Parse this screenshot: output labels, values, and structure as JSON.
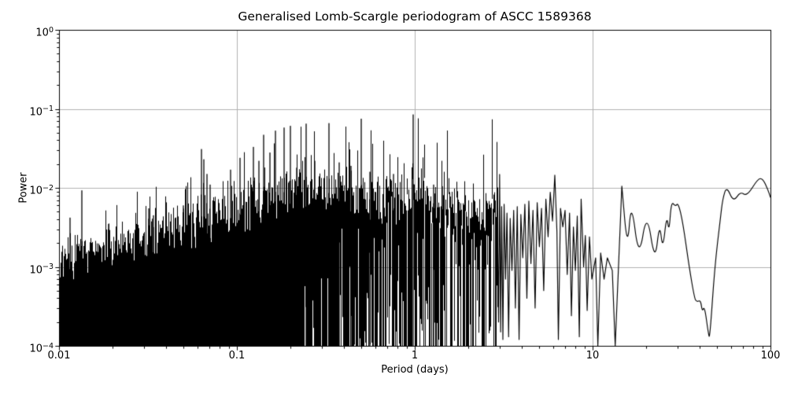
{
  "chart_data": {
    "type": "line",
    "title": "Generalised Lomb-Scargle periodogram of ASCC 1589368",
    "xlabel": "Period (days)",
    "ylabel": "Power",
    "xscale": "log",
    "yscale": "log",
    "xlim": [
      0.01,
      100
    ],
    "ylim": [
      0.0001,
      1
    ],
    "grid": true,
    "legend": "none",
    "line_color": "#000000",
    "grid_color": "#b0b0b0",
    "background_color": "#ffffff",
    "x_tick_values": [
      0.01,
      0.1,
      1,
      10,
      100
    ],
    "x_tick_labels": [
      "0.01",
      "0.1",
      "1",
      "10",
      "100"
    ],
    "y_tick_exponents": [
      0,
      -1,
      -2,
      -3,
      -4
    ],
    "noise_envelope": {
      "comment": "typical top of the dense unresolved periodogram noise, log10(period) vs log10(power); mass is solid black down to 1e-4 for log10(period) < -0.62, progressively gappier above",
      "log10_period": [
        -2.0,
        -1.9,
        -1.8,
        -1.7,
        -1.6,
        -1.5,
        -1.4,
        -1.3,
        -1.2,
        -1.1,
        -1.0,
        -0.9,
        -0.8,
        -0.7,
        -0.6,
        -0.5,
        -0.4,
        -0.3,
        -0.2,
        -0.1,
        0.0,
        0.1,
        0.2,
        0.3,
        0.4,
        0.465
      ],
      "log10_power_top": [
        -2.86,
        -2.82,
        -2.76,
        -2.7,
        -2.62,
        -2.56,
        -2.5,
        -2.42,
        -2.36,
        -2.32,
        -2.3,
        -2.22,
        -2.12,
        -2.05,
        -2.03,
        -2.02,
        -2.05,
        -2.06,
        -2.08,
        -2.06,
        -2.03,
        -2.12,
        -2.22,
        -2.3,
        -2.28,
        -2.2
      ],
      "solid_to_bottom_below_log10_period": -0.62
    },
    "major_peaks": {
      "period_days": [
        0.0115,
        0.0135,
        0.019,
        0.032,
        0.034,
        0.05,
        0.063,
        0.0655,
        0.068,
        0.071,
        0.092,
        0.104,
        0.124,
        0.133,
        0.142,
        0.153,
        0.165,
        0.184,
        0.2,
        0.218,
        0.246,
        0.275,
        0.33,
        0.375,
        0.44,
        0.5,
        0.56,
        0.76,
        0.98,
        1.28,
        1.43
      ],
      "power": [
        0.0042,
        0.0093,
        0.0035,
        0.0055,
        0.0045,
        0.006,
        0.031,
        0.023,
        0.015,
        0.011,
        0.017,
        0.024,
        0.033,
        0.022,
        0.047,
        0.028,
        0.053,
        0.058,
        0.061,
        0.018,
        0.065,
        0.022,
        0.066,
        0.021,
        0.019,
        0.075,
        0.016,
        0.015,
        0.085,
        0.011,
        0.0105
      ],
      "tallest_peak": {
        "period_days": 0.98,
        "power": 0.085
      }
    },
    "resolved_tail": {
      "comment": "resolved oscillating curve for periods > ~3 days",
      "period_days": [
        2.92,
        2.96,
        3.0,
        3.04,
        3.08,
        3.13,
        3.18,
        3.24,
        3.3,
        3.37,
        3.44,
        3.52,
        3.6,
        3.68,
        3.77,
        3.86,
        3.95,
        4.05,
        4.16,
        4.27,
        4.38,
        4.5,
        4.62,
        4.75,
        4.88,
        5.02,
        5.16,
        5.31,
        5.46,
        5.62,
        5.78,
        5.95,
        6.13,
        6.3,
        6.42,
        6.6,
        6.8,
        7.0,
        7.2,
        7.42,
        7.6,
        7.8,
        8.0,
        8.2,
        8.42,
        8.62,
        8.9,
        9.1,
        9.32,
        9.6,
        9.9,
        10.4,
        10.7,
        11.1,
        11.6,
        12.1,
        12.9,
        13.4,
        14.6,
        15.7,
        16.5,
        18.2,
        20.2,
        22.4,
        23.8,
        24.8,
        26.1,
        26.9,
        27.7,
        29.2,
        30.3,
        32.2,
        34.9,
        37.4,
        38.5,
        40.5,
        41.3,
        42.6,
        44.8,
        45.6,
        48.6,
        52.2,
        53.9,
        56.7,
        61.9,
        67.8,
        73.6,
        84.9,
        90.4,
        96.7,
        100
      ],
      "power": [
        0.003,
        0.0002,
        0.0148,
        0.00015,
        0.0058,
        0.00012,
        0.0062,
        0.0007,
        0.0048,
        0.00013,
        0.0041,
        0.0009,
        0.0052,
        0.0003,
        0.0058,
        0.00012,
        0.0046,
        0.0013,
        0.0062,
        0.0004,
        0.0068,
        0.0011,
        0.0052,
        0.0003,
        0.0065,
        0.0018,
        0.0055,
        0.0005,
        0.0072,
        0.0024,
        0.0088,
        0.0038,
        0.0145,
        0.0028,
        0.00012,
        0.0055,
        0.0032,
        0.0052,
        0.0008,
        0.0048,
        0.00024,
        0.0032,
        0.0009,
        0.0044,
        0.00013,
        0.0072,
        0.001,
        0.0025,
        0.00028,
        0.0024,
        0.0007,
        0.0013,
        0.0001,
        0.0015,
        0.0007,
        0.0013,
        0.0009,
        0.0001,
        0.0105,
        0.0016,
        0.0072,
        0.0012,
        0.0052,
        0.0011,
        0.0037,
        0.0016,
        0.0046,
        0.0027,
        0.0068,
        0.0058,
        0.0065,
        0.0036,
        0.001,
        0.0004,
        0.00036,
        0.00038,
        0.00027,
        0.00032,
        0.00014,
        0.000125,
        0.001,
        0.004,
        0.0073,
        0.0105,
        0.0066,
        0.009,
        0.0078,
        0.013,
        0.0132,
        0.0095,
        0.0076
      ]
    }
  }
}
